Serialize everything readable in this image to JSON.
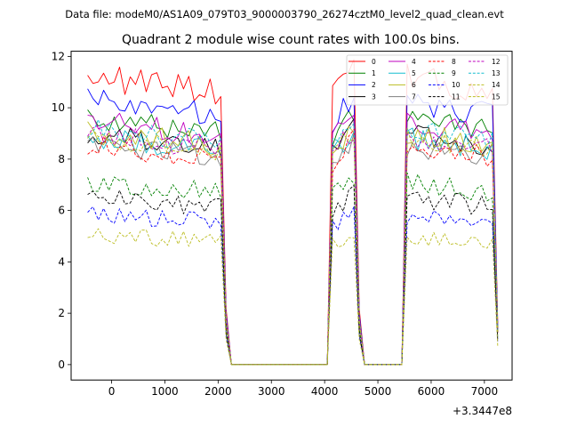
{
  "chart_data": {
    "type": "line",
    "suptitle": "Data file: modeM0/AS1A09_079T03_9000003790_26274cztM0_level2_quad_clean.evt",
    "title": "Quadrant 2 module wise count rates with 100.0s bins.",
    "xlabel": "",
    "ylabel": "",
    "x_offset_label": "+3.3447e8",
    "xlim": [
      -760,
      7520
    ],
    "ylim": [
      -0.6,
      12.2
    ],
    "x_ticks": [
      0,
      1000,
      2000,
      3000,
      4000,
      5000,
      6000,
      7000
    ],
    "x_tick_labels": [
      "0",
      "1000",
      "2000",
      "3000",
      "4000",
      "5000",
      "6000",
      "7000"
    ],
    "y_ticks": [
      0,
      2,
      4,
      6,
      8,
      10,
      12
    ],
    "y_tick_labels": [
      "0",
      "2",
      "4",
      "6",
      "8",
      "10",
      "12"
    ],
    "grid": false,
    "legend_position": "upper-right",
    "legend_columns": 4,
    "bin_width_s": 100,
    "segments": [
      {
        "x_start": -450,
        "x_end": 2050
      },
      {
        "x_start": 4150,
        "x_end": 4550
      },
      {
        "x_start": 5550,
        "x_end": 7150
      }
    ],
    "decay_edges": [
      {
        "x": 2150,
        "fraction": 0.2
      },
      {
        "x": 4650,
        "fraction": 0.2
      },
      {
        "x": 7250,
        "fraction": 0.15
      }
    ],
    "zero_ranges": [
      [
        2250,
        4050
      ],
      [
        4750,
        5450
      ]
    ],
    "series": [
      {
        "name": "0",
        "color": "#ff0000",
        "dash": "solid",
        "base": 10.9,
        "amp": 0.55
      },
      {
        "name": "1",
        "color": "#008000",
        "dash": "solid",
        "base": 9.3,
        "amp": 0.45
      },
      {
        "name": "2",
        "color": "#0000ff",
        "dash": "solid",
        "base": 10.0,
        "amp": 0.5
      },
      {
        "name": "3",
        "color": "#000000",
        "dash": "solid",
        "base": 8.7,
        "amp": 0.45
      },
      {
        "name": "4",
        "color": "#bf00bf",
        "dash": "solid",
        "base": 9.2,
        "amp": 0.45
      },
      {
        "name": "5",
        "color": "#17becf",
        "dash": "solid",
        "base": 8.6,
        "amp": 0.45
      },
      {
        "name": "6",
        "color": "#bcbd22",
        "dash": "solid",
        "base": 8.8,
        "amp": 0.45
      },
      {
        "name": "7",
        "color": "#7f7f7f",
        "dash": "solid",
        "base": 8.3,
        "amp": 0.45
      },
      {
        "name": "8",
        "color": "#ff0000",
        "dash": "dashed",
        "base": 8.3,
        "amp": 0.45
      },
      {
        "name": "9",
        "color": "#008000",
        "dash": "dashed",
        "base": 6.9,
        "amp": 0.4
      },
      {
        "name": "10",
        "color": "#0000ff",
        "dash": "dashed",
        "base": 5.7,
        "amp": 0.35
      },
      {
        "name": "11",
        "color": "#000000",
        "dash": "dashed",
        "base": 6.3,
        "amp": 0.4
      },
      {
        "name": "12",
        "color": "#bf00bf",
        "dash": "dashed",
        "base": 8.7,
        "amp": 0.45
      },
      {
        "name": "13",
        "color": "#17becf",
        "dash": "dashed",
        "base": 8.9,
        "amp": 0.45
      },
      {
        "name": "14",
        "color": "#bcbd22",
        "dash": "dashed",
        "base": 4.9,
        "amp": 0.35
      },
      {
        "name": "15",
        "color": "#bcbd22",
        "dash": "dashed",
        "base": 8.6,
        "amp": 0.4
      }
    ]
  }
}
